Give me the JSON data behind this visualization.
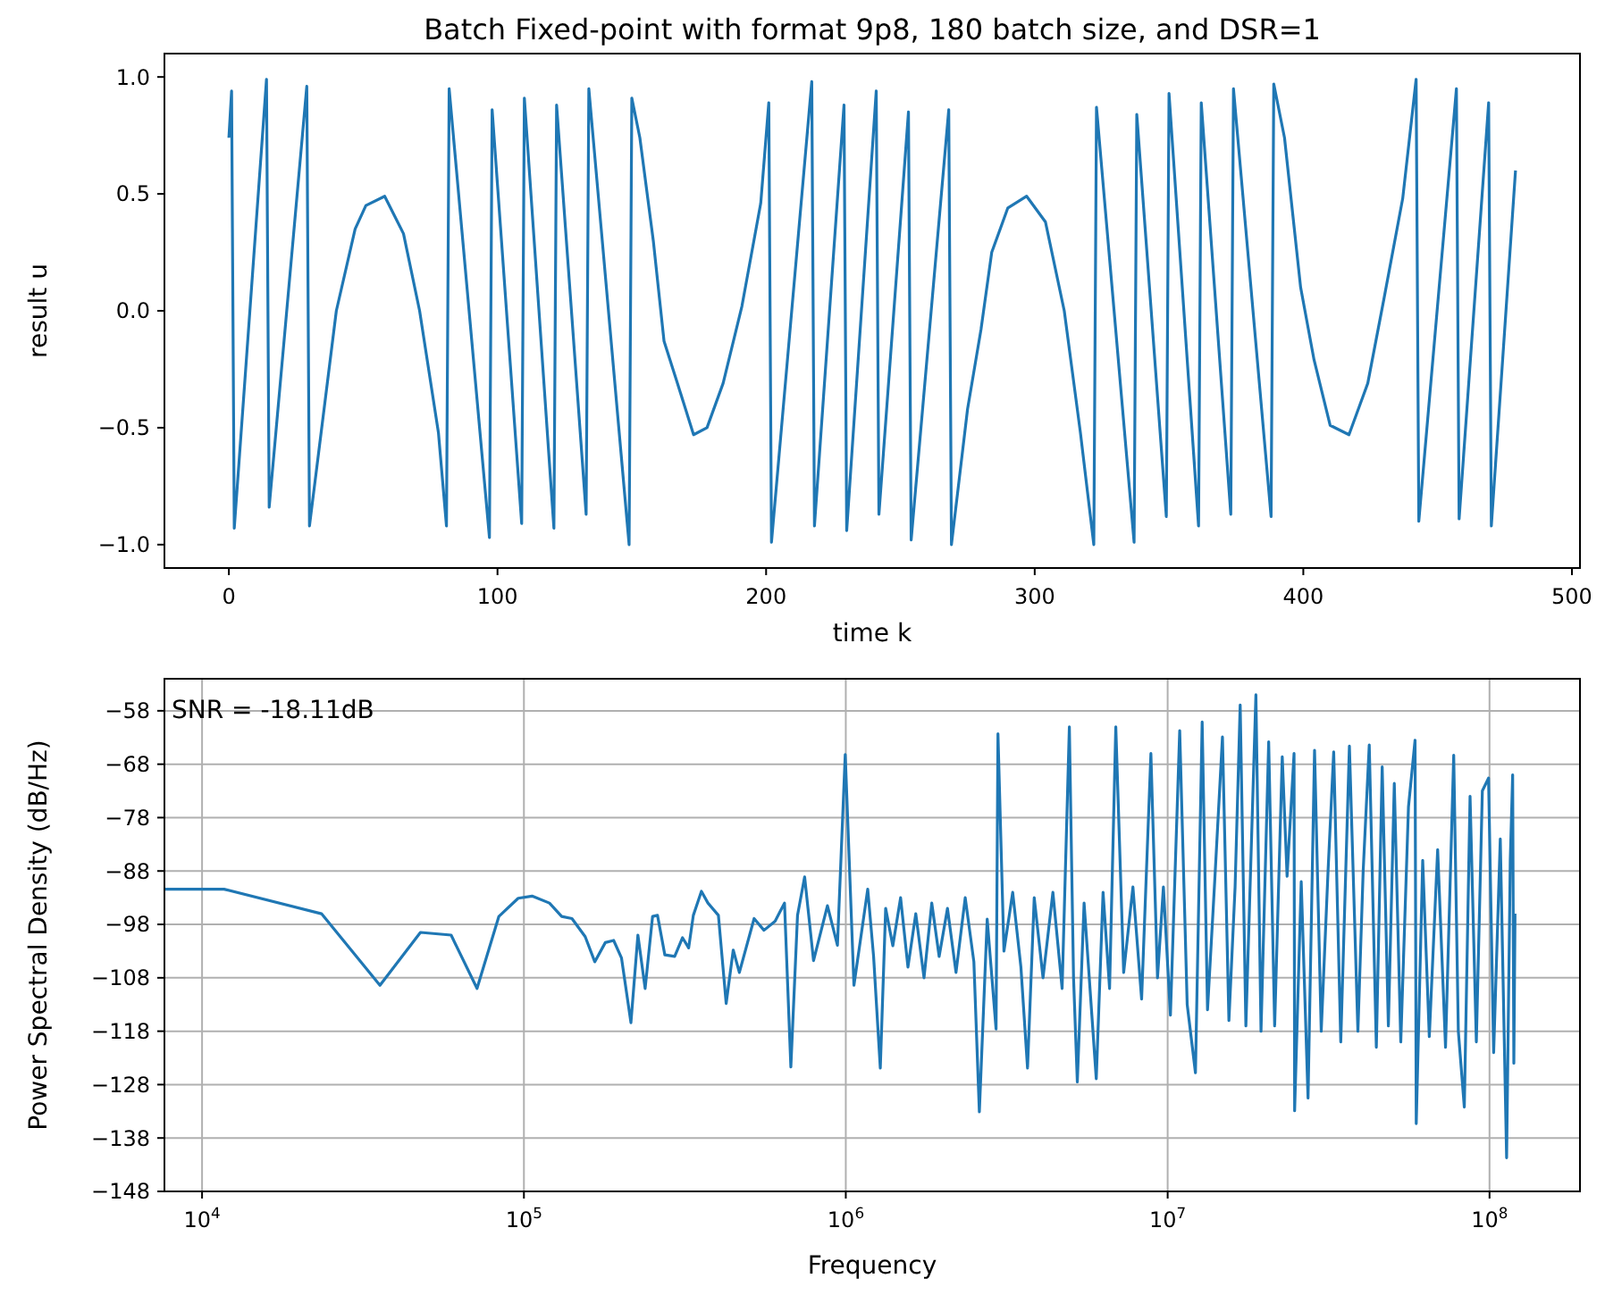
{
  "chart_data": [
    {
      "type": "line",
      "title": "Batch Fixed-point with format 9p8, 180 batch size, and DSR=1",
      "xlabel": "time k",
      "ylabel": "result u",
      "grid": false,
      "marker": "none",
      "line_style": "solid",
      "xlim": [
        -24,
        503
      ],
      "ylim": [
        -1.1,
        1.1
      ],
      "xticks": [
        0,
        100,
        200,
        300,
        400,
        500
      ],
      "yticks": [
        {
          "value": -1,
          "label": "−1.0"
        },
        {
          "value": -0.5,
          "label": "−0.5"
        },
        {
          "value": 0,
          "label": "0.0"
        },
        {
          "value": 0.5,
          "label": "0.5"
        },
        {
          "value": 1,
          "label": "1.0"
        }
      ],
      "series": [
        {
          "color": "#1f77b4",
          "x": [
            0,
            1,
            2,
            14,
            15,
            29,
            30,
            40,
            47,
            51,
            58,
            65,
            71,
            78,
            81,
            82,
            97,
            98,
            109,
            110,
            121,
            122,
            133,
            134,
            149,
            150,
            153,
            158,
            162,
            167,
            173,
            178,
            184,
            191,
            198,
            201,
            202,
            217,
            218,
            229,
            230,
            241,
            242,
            253,
            254,
            268,
            269,
            275,
            280,
            284,
            290,
            297,
            304,
            311,
            317,
            322,
            323,
            337,
            338,
            349,
            350,
            361,
            362,
            373,
            374,
            388,
            389,
            393,
            399,
            404,
            410,
            417,
            424,
            430,
            437,
            442,
            443,
            457,
            458,
            469,
            470,
            479
          ],
          "values": [
            0.74,
            0.94,
            -0.93,
            0.99,
            -0.84,
            0.96,
            -0.92,
            0,
            0.35,
            0.45,
            0.49,
            0.33,
            0,
            -0.52,
            -0.92,
            0.95,
            -0.97,
            0.86,
            -0.91,
            0.91,
            -0.93,
            0.88,
            -0.87,
            0.95,
            -1.0,
            0.91,
            0.74,
            0.3,
            -0.13,
            -0.31,
            -0.53,
            -0.5,
            -0.31,
            0.02,
            0.46,
            0.89,
            -0.99,
            0.98,
            -0.92,
            0.88,
            -0.94,
            0.94,
            -0.87,
            0.85,
            -0.98,
            0.86,
            -1.0,
            -0.42,
            -0.08,
            0.25,
            0.44,
            0.49,
            0.38,
            0,
            -0.52,
            -1.0,
            0.87,
            -0.99,
            0.84,
            -0.88,
            0.93,
            -0.92,
            0.89,
            -0.87,
            0.95,
            -0.88,
            0.97,
            0.74,
            0.1,
            -0.21,
            -0.49,
            -0.53,
            -0.31,
            0.05,
            0.48,
            0.99,
            -0.9,
            0.95,
            -0.89,
            0.89,
            -0.92,
            0.6
          ]
        }
      ]
    },
    {
      "type": "line",
      "xlabel": "Frequency",
      "ylabel": "Power Spectral Density (dB/Hz)",
      "grid": true,
      "log": "x",
      "marker": "none",
      "line_style": "solid",
      "annotations": [
        "SNR = -18.11dB"
      ],
      "xlim": [
        7640,
        191000000
      ],
      "ylim": [
        -148,
        -52
      ],
      "xticks": [
        {
          "value": 10000,
          "label": "10$^{4}$"
        },
        {
          "value": 100000,
          "label": "10$^{5}$"
        },
        {
          "value": 1000000,
          "label": "10$^{6}$"
        },
        {
          "value": 10000000,
          "label": "10$^{7}$"
        },
        {
          "value": 100000000,
          "label": "10$^{8}$"
        }
      ],
      "yticks": [
        {
          "value": -58,
          "label": "−58"
        },
        {
          "value": -68,
          "label": "−68"
        },
        {
          "value": -78,
          "label": "−78"
        },
        {
          "value": -88,
          "label": "−88"
        },
        {
          "value": -98,
          "label": "−98"
        },
        {
          "value": -108,
          "label": "−108"
        },
        {
          "value": -118,
          "label": "−118"
        },
        {
          "value": -128,
          "label": "−128"
        },
        {
          "value": -138,
          "label": "−138"
        },
        {
          "value": -148,
          "label": "−148"
        }
      ],
      "series": [
        {
          "color": "#1f77b4",
          "x": [
            7640,
            11700,
            23500,
            35700,
            47700,
            59400,
            71500,
            83600,
            96000,
            106000,
            120000,
            131000,
            141000,
            155000,
            166000,
            179000,
            190000,
            201000,
            215000,
            226000,
            238000,
            251000,
            260000,
            274000,
            294000,
            311000,
            325000,
            336000,
            356000,
            373000,
            402000,
            425000,
            447000,
            467000,
            519000,
            557000,
            603000,
            645000,
            675000,
            708000,
            745000,
            794000,
            877000,
            942000,
            996000,
            1060000,
            1170000,
            1220000,
            1280000,
            1330000,
            1400000,
            1480000,
            1560000,
            1650000,
            1750000,
            1850000,
            1950000,
            2070000,
            2200000,
            2350000,
            2500000,
            2600000,
            2750000,
            2930000,
            2970000,
            3100000,
            3300000,
            3500000,
            3670000,
            3850000,
            4100000,
            4400000,
            4700000,
            4950000,
            5100000,
            5240000,
            5500000,
            6000000,
            6300000,
            6600000,
            6900000,
            7300000,
            7800000,
            8300000,
            8870000,
            9300000,
            9700000,
            10200000,
            10900000,
            11500000,
            12200000,
            12800000,
            13300000,
            14000000,
            14800000,
            15500000,
            16200000,
            16800000,
            17500000,
            18800000,
            19500000,
            20600000,
            21500000,
            22700000,
            23500000,
            24700000,
            24800000,
            26000000,
            27300000,
            28600000,
            30000000,
            31500000,
            32800000,
            34500000,
            36700000,
            39000000,
            40500000,
            42300000,
            44500000,
            46400000,
            48500000,
            50600000,
            53000000,
            56000000,
            58700000,
            59200000,
            62000000,
            65000000,
            69000000,
            73000000,
            77400000,
            80000000,
            83500000,
            87000000,
            91000000,
            95000000,
            99300000,
            103000000,
            108000000,
            113000000,
            116000000,
            118000000,
            119000000,
            120000000
          ],
          "values": [
            -91.4,
            -91.4,
            -96,
            -109.4,
            -99.5,
            -100,
            -110,
            -96.5,
            -93.1,
            -92.7,
            -94,
            -96.5,
            -96.9,
            -100.3,
            -105,
            -101.4,
            -101,
            -104.3,
            -116.4,
            -100,
            -110,
            -96.5,
            -96.3,
            -103.7,
            -104,
            -100.5,
            -102.4,
            -96.3,
            -91.8,
            -94,
            -96.3,
            -112.8,
            -102.8,
            -107,
            -96.9,
            -99.1,
            -97.4,
            -94,
            -124.7,
            -96.3,
            -89.1,
            -104.8,
            -94.5,
            -101.9,
            -66.2,
            -109.4,
            -91.4,
            -104,
            -124.9,
            -95,
            -102,
            -93,
            -106,
            -96,
            -108,
            -94,
            -104,
            -95,
            -107,
            -93,
            -105,
            -133.1,
            -97,
            -117.6,
            -62.3,
            -103,
            -92,
            -106,
            -124.9,
            -93,
            -108,
            -92,
            -110,
            -61,
            -108,
            -127.5,
            -94,
            -126.9,
            -92,
            -110,
            -61,
            -107,
            -91,
            -112,
            -66,
            -108,
            -91,
            -115,
            -61.7,
            -113,
            -125.8,
            -60.1,
            -114,
            -90,
            -62.9,
            -116,
            -91,
            -56.9,
            -117,
            -55,
            -118,
            -63.8,
            -117,
            -66.6,
            -89,
            -66,
            -132.9,
            -90,
            -130.5,
            -65.4,
            -118,
            -88,
            -65.7,
            -120,
            -64.6,
            -118,
            -88,
            -64.4,
            -121,
            -68.5,
            -117,
            -71.6,
            -120,
            -76,
            -63.5,
            -135.3,
            -86,
            -119,
            -84,
            -121,
            -66.3,
            -118,
            -132.2,
            -74,
            -120,
            -73,
            -70.6,
            -122,
            -82,
            -141.7,
            -86,
            -70,
            -124,
            -96
          ]
        }
      ]
    }
  ]
}
